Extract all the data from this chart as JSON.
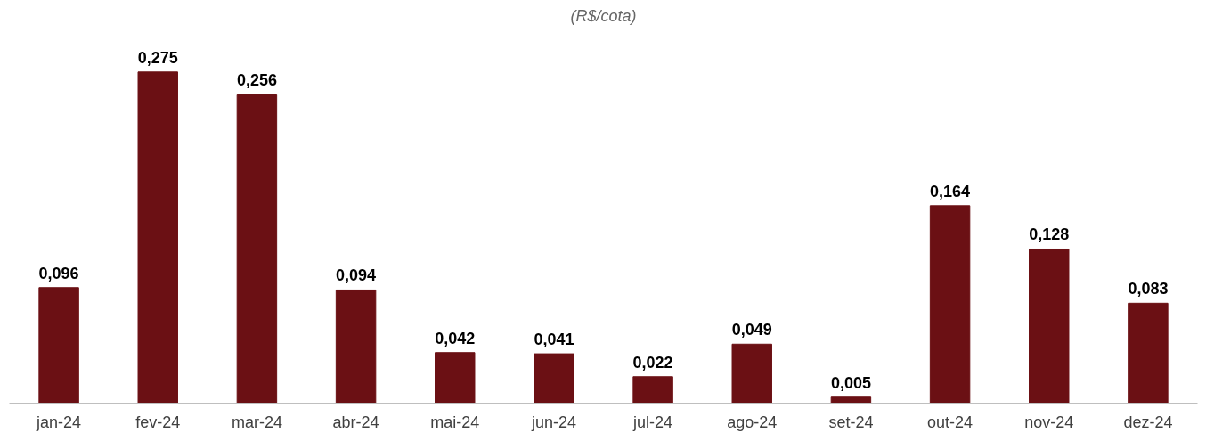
{
  "chart_data": {
    "type": "bar",
    "subtitle": "(R$/cota)",
    "categories": [
      "jan-24",
      "fev-24",
      "mar-24",
      "abr-24",
      "mai-24",
      "jun-24",
      "jul-24",
      "ago-24",
      "set-24",
      "out-24",
      "nov-24",
      "dez-24"
    ],
    "values": [
      0.096,
      0.275,
      0.256,
      0.094,
      0.042,
      0.041,
      0.022,
      0.049,
      0.005,
      0.164,
      0.128,
      0.083
    ],
    "value_labels": [
      "0,096",
      "0,275",
      "0,256",
      "0,094",
      "0,042",
      "0,041",
      "0,022",
      "0,049",
      "0,005",
      "0,164",
      "0,128",
      "0,083"
    ],
    "color": "#6b1014"
  }
}
